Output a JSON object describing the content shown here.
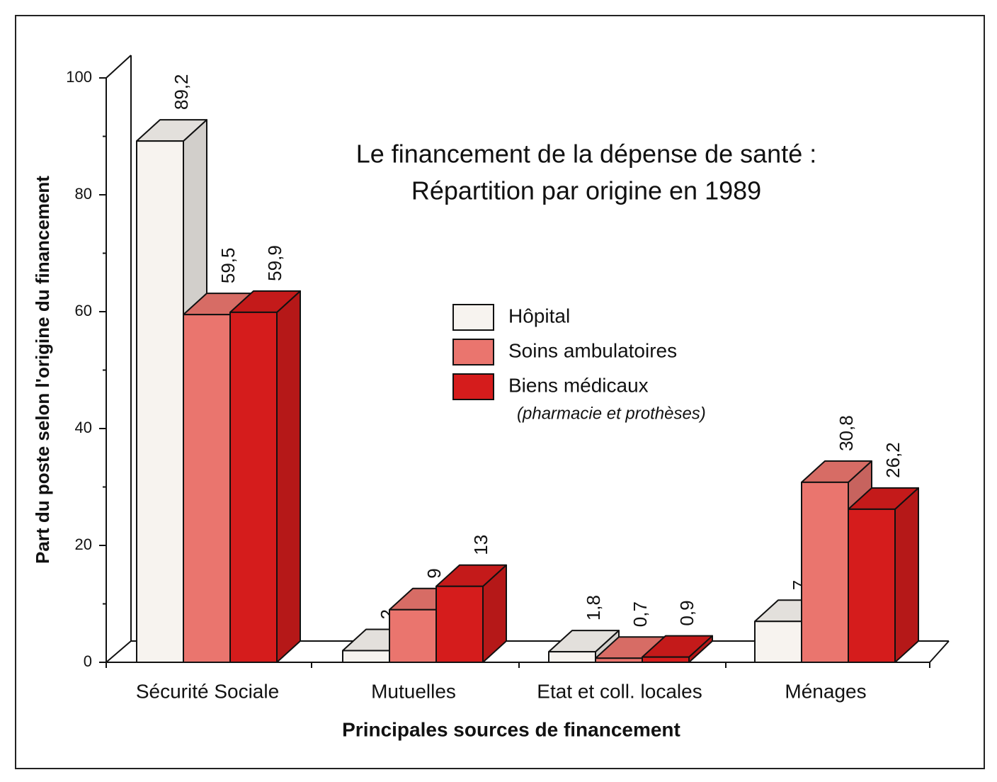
{
  "chart_data": {
    "type": "bar3d",
    "title": "Le financement de la dépense de santé :",
    "subtitle": "Répartition par origine en 1989",
    "x_label": "Principales sources de financement",
    "y_label": "Part du poste selon l'origine du financement",
    "categories": [
      "Sécurité Sociale",
      "Mutuelles",
      "Etat et coll. locales",
      "Ménages"
    ],
    "series": [
      {
        "name": "Hôpital",
        "color": "#f7f3ef",
        "values": [
          89.2,
          2,
          1.8,
          7
        ],
        "value_labels": [
          "89,2",
          "2",
          "1,8",
          "7"
        ]
      },
      {
        "name": "Soins ambulatoires",
        "color": "#ea756e",
        "values": [
          59.5,
          9,
          0.7,
          30.8
        ],
        "value_labels": [
          "59,5",
          "9",
          "0,7",
          "30,8"
        ]
      },
      {
        "name": "Biens médicaux",
        "color": "#d51c1c",
        "values": [
          59.9,
          13,
          0.9,
          26.2
        ],
        "value_labels": [
          "59,9",
          "13",
          "0,9",
          "26,2"
        ]
      }
    ],
    "legend_note": "(pharmacie et prothèses)",
    "ylim": [
      0,
      100
    ],
    "yticks": [
      0,
      20,
      40,
      60,
      80,
      100
    ],
    "yminorticks": [
      10,
      30,
      50,
      70,
      90
    ]
  }
}
